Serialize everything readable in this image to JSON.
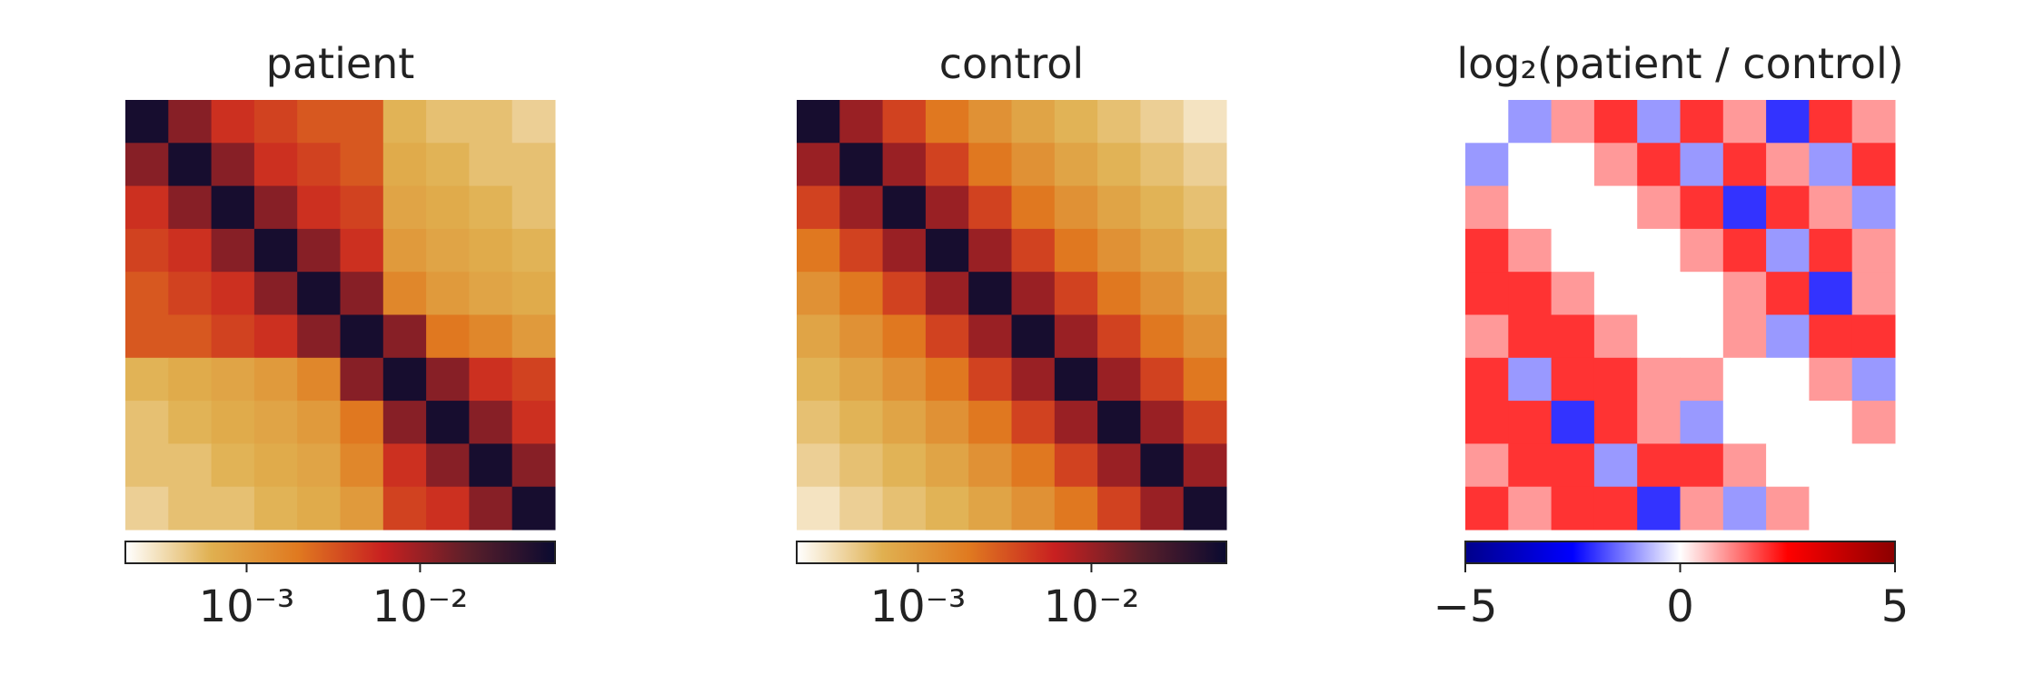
{
  "chart_data": [
    {
      "type": "heatmap",
      "title": "patient",
      "log_scale": true,
      "colormap": [
        "#ffffff",
        "#e0b050",
        "#e07a20",
        "#c82020",
        "#5a1f2a",
        "#0a0a30"
      ],
      "zlim": [
        0.0002,
        0.06
      ],
      "zticks": [
        {
          "value": 0.001,
          "label": "10⁻³"
        },
        {
          "value": 0.01,
          "label": "10⁻²"
        }
      ],
      "values": [
        [
          0.05,
          0.012,
          0.005,
          0.004,
          0.003,
          0.003,
          0.0006,
          0.0005,
          0.0005,
          0.0004
        ],
        [
          0.012,
          0.05,
          0.012,
          0.005,
          0.004,
          0.003,
          0.0007,
          0.0006,
          0.0005,
          0.0005
        ],
        [
          0.005,
          0.012,
          0.05,
          0.012,
          0.005,
          0.004,
          0.0008,
          0.0007,
          0.0006,
          0.0005
        ],
        [
          0.004,
          0.005,
          0.012,
          0.05,
          0.012,
          0.005,
          0.001,
          0.0008,
          0.0007,
          0.0006
        ],
        [
          0.003,
          0.004,
          0.005,
          0.012,
          0.05,
          0.012,
          0.0015,
          0.001,
          0.0008,
          0.0007
        ],
        [
          0.003,
          0.003,
          0.004,
          0.005,
          0.012,
          0.05,
          0.012,
          0.002,
          0.0015,
          0.001
        ],
        [
          0.0006,
          0.0007,
          0.0008,
          0.001,
          0.0015,
          0.012,
          0.05,
          0.012,
          0.005,
          0.004
        ],
        [
          0.0005,
          0.0006,
          0.0007,
          0.0008,
          0.001,
          0.002,
          0.012,
          0.05,
          0.012,
          0.005
        ],
        [
          0.0005,
          0.0005,
          0.0006,
          0.0007,
          0.0008,
          0.0015,
          0.005,
          0.012,
          0.05,
          0.012
        ],
        [
          0.0004,
          0.0005,
          0.0005,
          0.0006,
          0.0007,
          0.001,
          0.004,
          0.005,
          0.012,
          0.05
        ]
      ]
    },
    {
      "type": "heatmap",
      "title": "control",
      "log_scale": true,
      "colormap": [
        "#ffffff",
        "#e0b050",
        "#e07a20",
        "#c82020",
        "#5a1f2a",
        "#0a0a30"
      ],
      "zlim": [
        0.0002,
        0.06
      ],
      "zticks": [
        {
          "value": 0.001,
          "label": "10⁻³"
        },
        {
          "value": 0.01,
          "label": "10⁻²"
        }
      ],
      "values": [
        [
          0.05,
          0.01,
          0.004,
          0.002,
          0.0012,
          0.0008,
          0.0006,
          0.0005,
          0.0004,
          0.0003
        ],
        [
          0.01,
          0.05,
          0.01,
          0.004,
          0.002,
          0.0012,
          0.0008,
          0.0006,
          0.0005,
          0.0004
        ],
        [
          0.004,
          0.01,
          0.05,
          0.01,
          0.004,
          0.002,
          0.0012,
          0.0008,
          0.0006,
          0.0005
        ],
        [
          0.002,
          0.004,
          0.01,
          0.05,
          0.01,
          0.004,
          0.002,
          0.0012,
          0.0008,
          0.0006
        ],
        [
          0.0012,
          0.002,
          0.004,
          0.01,
          0.05,
          0.01,
          0.004,
          0.002,
          0.0012,
          0.0008
        ],
        [
          0.0008,
          0.0012,
          0.002,
          0.004,
          0.01,
          0.05,
          0.01,
          0.004,
          0.002,
          0.0012
        ],
        [
          0.0006,
          0.0008,
          0.0012,
          0.002,
          0.004,
          0.01,
          0.05,
          0.01,
          0.004,
          0.002
        ],
        [
          0.0005,
          0.0006,
          0.0008,
          0.0012,
          0.002,
          0.004,
          0.01,
          0.05,
          0.01,
          0.004
        ],
        [
          0.0004,
          0.0005,
          0.0006,
          0.0008,
          0.0012,
          0.002,
          0.004,
          0.01,
          0.05,
          0.01
        ],
        [
          0.0003,
          0.0004,
          0.0005,
          0.0006,
          0.0008,
          0.0012,
          0.002,
          0.004,
          0.01,
          0.05
        ]
      ]
    },
    {
      "type": "heatmap",
      "title": "log₂(patient / control)",
      "log_scale": false,
      "colormap": [
        "#00008b",
        "#0000ff",
        "#ffffff",
        "#ff0000",
        "#8b0000"
      ],
      "zlim": [
        -5,
        5
      ],
      "zticks": [
        {
          "value": -5,
          "label": "−5"
        },
        0,
        5
      ],
      "values": [
        [
          0,
          -1,
          1,
          2,
          -1,
          2,
          1,
          -2,
          2,
          1
        ],
        [
          -1,
          0,
          0,
          1,
          2,
          -1,
          2,
          1,
          -1,
          2
        ],
        [
          1,
          0,
          0,
          0,
          1,
          2,
          -2,
          2,
          1,
          -1
        ],
        [
          2,
          1,
          0,
          0,
          0,
          1,
          2,
          -1,
          2,
          1
        ],
        [
          2,
          2,
          1,
          0,
          0,
          0,
          1,
          2,
          -2,
          1
        ],
        [
          1,
          2,
          2,
          1,
          0,
          0,
          1,
          -1,
          2,
          2
        ],
        [
          2,
          -1,
          2,
          2,
          1,
          1,
          0,
          0,
          1,
          -1
        ],
        [
          2,
          2,
          -2,
          2,
          1,
          -1,
          0,
          0,
          0,
          1
        ],
        [
          1,
          2,
          2,
          -1,
          2,
          2,
          1,
          0,
          0,
          0
        ],
        [
          2,
          1,
          2,
          2,
          -2,
          1,
          -1,
          1,
          0,
          0
        ]
      ]
    }
  ]
}
